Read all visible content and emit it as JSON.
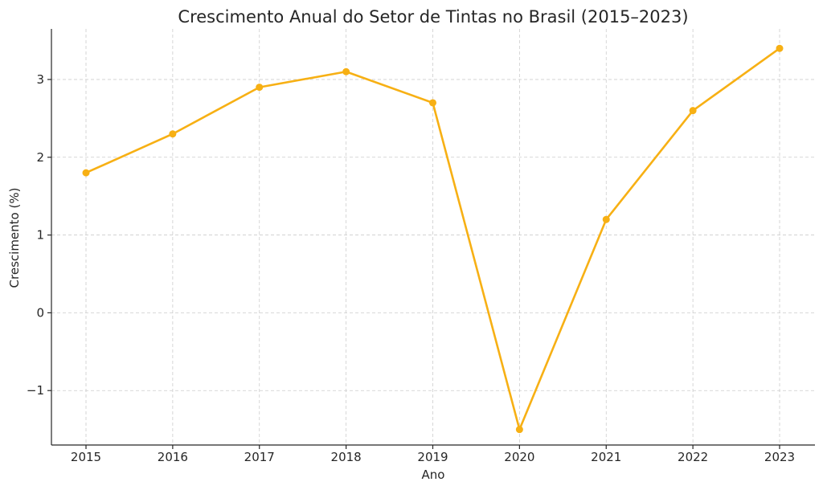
{
  "chart_data": {
    "type": "line",
    "title": "Crescimento Anual do Setor de Tintas no Brasil (2015–2023)",
    "xlabel": "Ano",
    "ylabel": "Crescimento (%)",
    "x": [
      "2015",
      "2016",
      "2017",
      "2018",
      "2019",
      "2020",
      "2021",
      "2022",
      "2023"
    ],
    "series": [
      {
        "values": [
          1.8,
          2.3,
          2.9,
          3.1,
          2.7,
          -1.5,
          1.2,
          2.6,
          3.4
        ],
        "color": "#F7B014"
      }
    ],
    "ylim": [
      -1.7,
      3.65
    ],
    "yticks": [
      -1,
      0,
      1,
      2,
      3
    ],
    "ytick_labels": [
      "−1",
      "0",
      "1",
      "2",
      "3"
    ],
    "grid": true,
    "legend": "none"
  }
}
